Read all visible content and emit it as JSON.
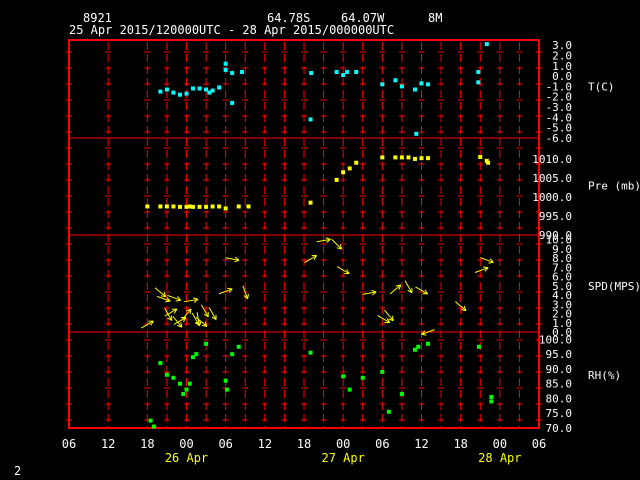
{
  "header": {
    "station": "8921",
    "lat": "64.78S",
    "lon": "64.07W",
    "elev": "8M",
    "range": "25 Apr 2015/120000UTC - 28 Apr 2015/000000UTC"
  },
  "footer_label": "2",
  "colors": {
    "background": "#000000",
    "frame": "#ff0000",
    "text": "#ffffff",
    "temp": "#00ffff",
    "pressure": "#ffff00",
    "wind": "#ffff00",
    "rh": "#00ff00"
  },
  "chart_data": {
    "type": "scatter",
    "grid": true,
    "x_axis": {
      "unit": "hours since 25 Apr 00UTC",
      "range": [
        6,
        78
      ],
      "tick_labels": [
        "06",
        "12",
        "18",
        "00",
        "06",
        "12",
        "18",
        "00",
        "06",
        "12",
        "18",
        "00",
        "06"
      ],
      "tick_values": [
        6,
        12,
        18,
        24,
        30,
        36,
        42,
        48,
        54,
        60,
        66,
        72,
        78
      ],
      "day_labels": [
        {
          "label": "26 Apr",
          "x": 24
        },
        {
          "label": "27 Apr",
          "x": 48
        },
        {
          "label": "28 Apr",
          "x": 72
        }
      ],
      "vertical_grid": [
        6,
        12,
        18,
        21,
        24,
        27,
        30,
        33,
        36,
        39,
        42,
        45,
        48,
        51,
        54,
        57,
        60,
        63,
        66,
        69,
        72,
        75,
        78
      ]
    },
    "panels": [
      {
        "name": "T(C)",
        "ylim": [
          -6,
          3.5
        ],
        "ticks": [
          3,
          2,
          1,
          0,
          -1,
          -2,
          -3,
          -4,
          -5,
          -6
        ],
        "tick_labels": [
          "3.0",
          "2.0",
          "1.0",
          "0.0",
          "-1.0",
          "-2.0",
          "-3.0",
          "-4.0",
          "-5.0",
          "-6.0"
        ],
        "label_value": -1,
        "color": "#00ffff",
        "points": [
          [
            20,
            -1.5
          ],
          [
            21,
            -1.3
          ],
          [
            22,
            -1.6
          ],
          [
            23,
            -1.8
          ],
          [
            24,
            -1.7
          ],
          [
            25,
            -1.2
          ],
          [
            26,
            -1.2
          ],
          [
            27,
            -1.3
          ],
          [
            27.5,
            -1.6
          ],
          [
            28,
            -1.4
          ],
          [
            29,
            -1.1
          ],
          [
            30,
            1.2
          ],
          [
            30,
            0.6
          ],
          [
            31,
            -2.6
          ],
          [
            31,
            0.3
          ],
          [
            32.5,
            0.4
          ],
          [
            43,
            -4.2
          ],
          [
            43.1,
            0.3
          ],
          [
            47,
            0.4
          ],
          [
            48,
            0.1
          ],
          [
            48.6,
            0.4
          ],
          [
            50,
            0.4
          ],
          [
            54,
            -0.8
          ],
          [
            56,
            -0.4
          ],
          [
            57,
            -1.0
          ],
          [
            59,
            -1.3
          ],
          [
            59.2,
            -5.6
          ],
          [
            60,
            -0.7
          ],
          [
            61,
            -0.8
          ],
          [
            68.7,
            -0.6
          ],
          [
            68.7,
            0.4
          ],
          [
            70,
            3.1
          ]
        ]
      },
      {
        "name": "Pre (mb)",
        "ylim": [
          990,
          1015.5
        ],
        "ticks": [
          1010,
          1005,
          1000,
          995,
          990
        ],
        "tick_labels": [
          "1010.0",
          "1005.0",
          "1000.0",
          "995.0",
          "990.0"
        ],
        "label_value": 1003,
        "color": "#ffff00",
        "points": [
          [
            18,
            997.5
          ],
          [
            20,
            997.5
          ],
          [
            21,
            997.5
          ],
          [
            22,
            997.5
          ],
          [
            23,
            997.4
          ],
          [
            24,
            997.4
          ],
          [
            24.5,
            997.5
          ],
          [
            25,
            997.4
          ],
          [
            26,
            997.4
          ],
          [
            27,
            997.4
          ],
          [
            28,
            997.5
          ],
          [
            29,
            997.5
          ],
          [
            30,
            997
          ],
          [
            32,
            997.5
          ],
          [
            33.5,
            997.5
          ],
          [
            43,
            998.5
          ],
          [
            47,
            1004.5
          ],
          [
            48,
            1006.5
          ],
          [
            49,
            1007.5
          ],
          [
            50,
            1009
          ],
          [
            54,
            1010.4
          ],
          [
            56,
            1010.4
          ],
          [
            57,
            1010.4
          ],
          [
            58,
            1010.4
          ],
          [
            59,
            1010
          ],
          [
            60,
            1010.2
          ],
          [
            61,
            1010.2
          ],
          [
            69,
            1010.5
          ],
          [
            70,
            1009.5
          ],
          [
            70.2,
            1009
          ]
        ]
      },
      {
        "name": "SPD(MPS)",
        "ylim": [
          0,
          10.5
        ],
        "ticks": [
          10,
          9,
          8,
          7,
          6,
          5,
          4,
          3,
          2,
          1,
          0
        ],
        "tick_labels": [
          "10.0",
          "9.0",
          "8.0",
          "7.0",
          "6.0",
          "5.0",
          "4.0",
          "3.0",
          "2.0",
          "1.0",
          "0.0"
        ],
        "label_value": 5,
        "color": "#ffff00",
        "arrows": [
          [
            18,
            0.8,
            30
          ],
          [
            20,
            4.3,
            -40
          ],
          [
            20.5,
            3.6,
            -20
          ],
          [
            21.2,
            1.9,
            -60
          ],
          [
            21.6,
            2.1,
            30
          ],
          [
            22.1,
            3.7,
            -20
          ],
          [
            22.6,
            1.1,
            -50
          ],
          [
            23,
            1.2,
            30
          ],
          [
            24,
            1.9,
            50
          ],
          [
            24.7,
            3.4,
            10
          ],
          [
            25.4,
            1.4,
            -60
          ],
          [
            25.8,
            1.4,
            -80
          ],
          [
            26.3,
            1.1,
            -40
          ],
          [
            26.8,
            2.3,
            -60
          ],
          [
            28,
            2.0,
            -60
          ],
          [
            30,
            4.4,
            20
          ],
          [
            31,
            7.9,
            -10
          ],
          [
            33,
            4.3,
            -70
          ],
          [
            43,
            7.9,
            30
          ],
          [
            45,
            9.9,
            10
          ],
          [
            47,
            9.5,
            -45
          ],
          [
            48,
            6.7,
            -30
          ],
          [
            52,
            4.2,
            10
          ],
          [
            54.2,
            1.4,
            -30
          ],
          [
            55,
            1.8,
            -50
          ],
          [
            56,
            4.6,
            40
          ],
          [
            58,
            4.9,
            -60
          ],
          [
            60,
            4.5,
            -30
          ],
          [
            61,
            0.0,
            -160
          ],
          [
            66,
            2.8,
            -40
          ],
          [
            69.2,
            6.7,
            20
          ],
          [
            70,
            7.8,
            -20
          ]
        ]
      },
      {
        "name": "RH(%)",
        "ylim": [
          70,
          102.5
        ],
        "ticks": [
          100,
          95,
          90,
          85,
          80,
          75,
          70
        ],
        "tick_labels": [
          "100.0",
          "95.0",
          "90.0",
          "85.0",
          "80.0",
          "75.0",
          "70.0"
        ],
        "label_value": 88,
        "color": "#00ff00",
        "points": [
          [
            18.5,
            72.5
          ],
          [
            19,
            70.5
          ],
          [
            20,
            92
          ],
          [
            21,
            88
          ],
          [
            22,
            87
          ],
          [
            23,
            85
          ],
          [
            23.5,
            81.5
          ],
          [
            24,
            83
          ],
          [
            24.5,
            85
          ],
          [
            25,
            94
          ],
          [
            25.5,
            95
          ],
          [
            27,
            98.5
          ],
          [
            30,
            86
          ],
          [
            30.2,
            83
          ],
          [
            31,
            95
          ],
          [
            32,
            97.5
          ],
          [
            43,
            95.5
          ],
          [
            48,
            87.5
          ],
          [
            49,
            83
          ],
          [
            51,
            87
          ],
          [
            54,
            89
          ],
          [
            55,
            75.5
          ],
          [
            57,
            81.5
          ],
          [
            59,
            96.5
          ],
          [
            59.5,
            97.5
          ],
          [
            61,
            98.5
          ],
          [
            68.8,
            97.5
          ],
          [
            70.7,
            80.5
          ],
          [
            70.7,
            79
          ]
        ]
      }
    ]
  }
}
